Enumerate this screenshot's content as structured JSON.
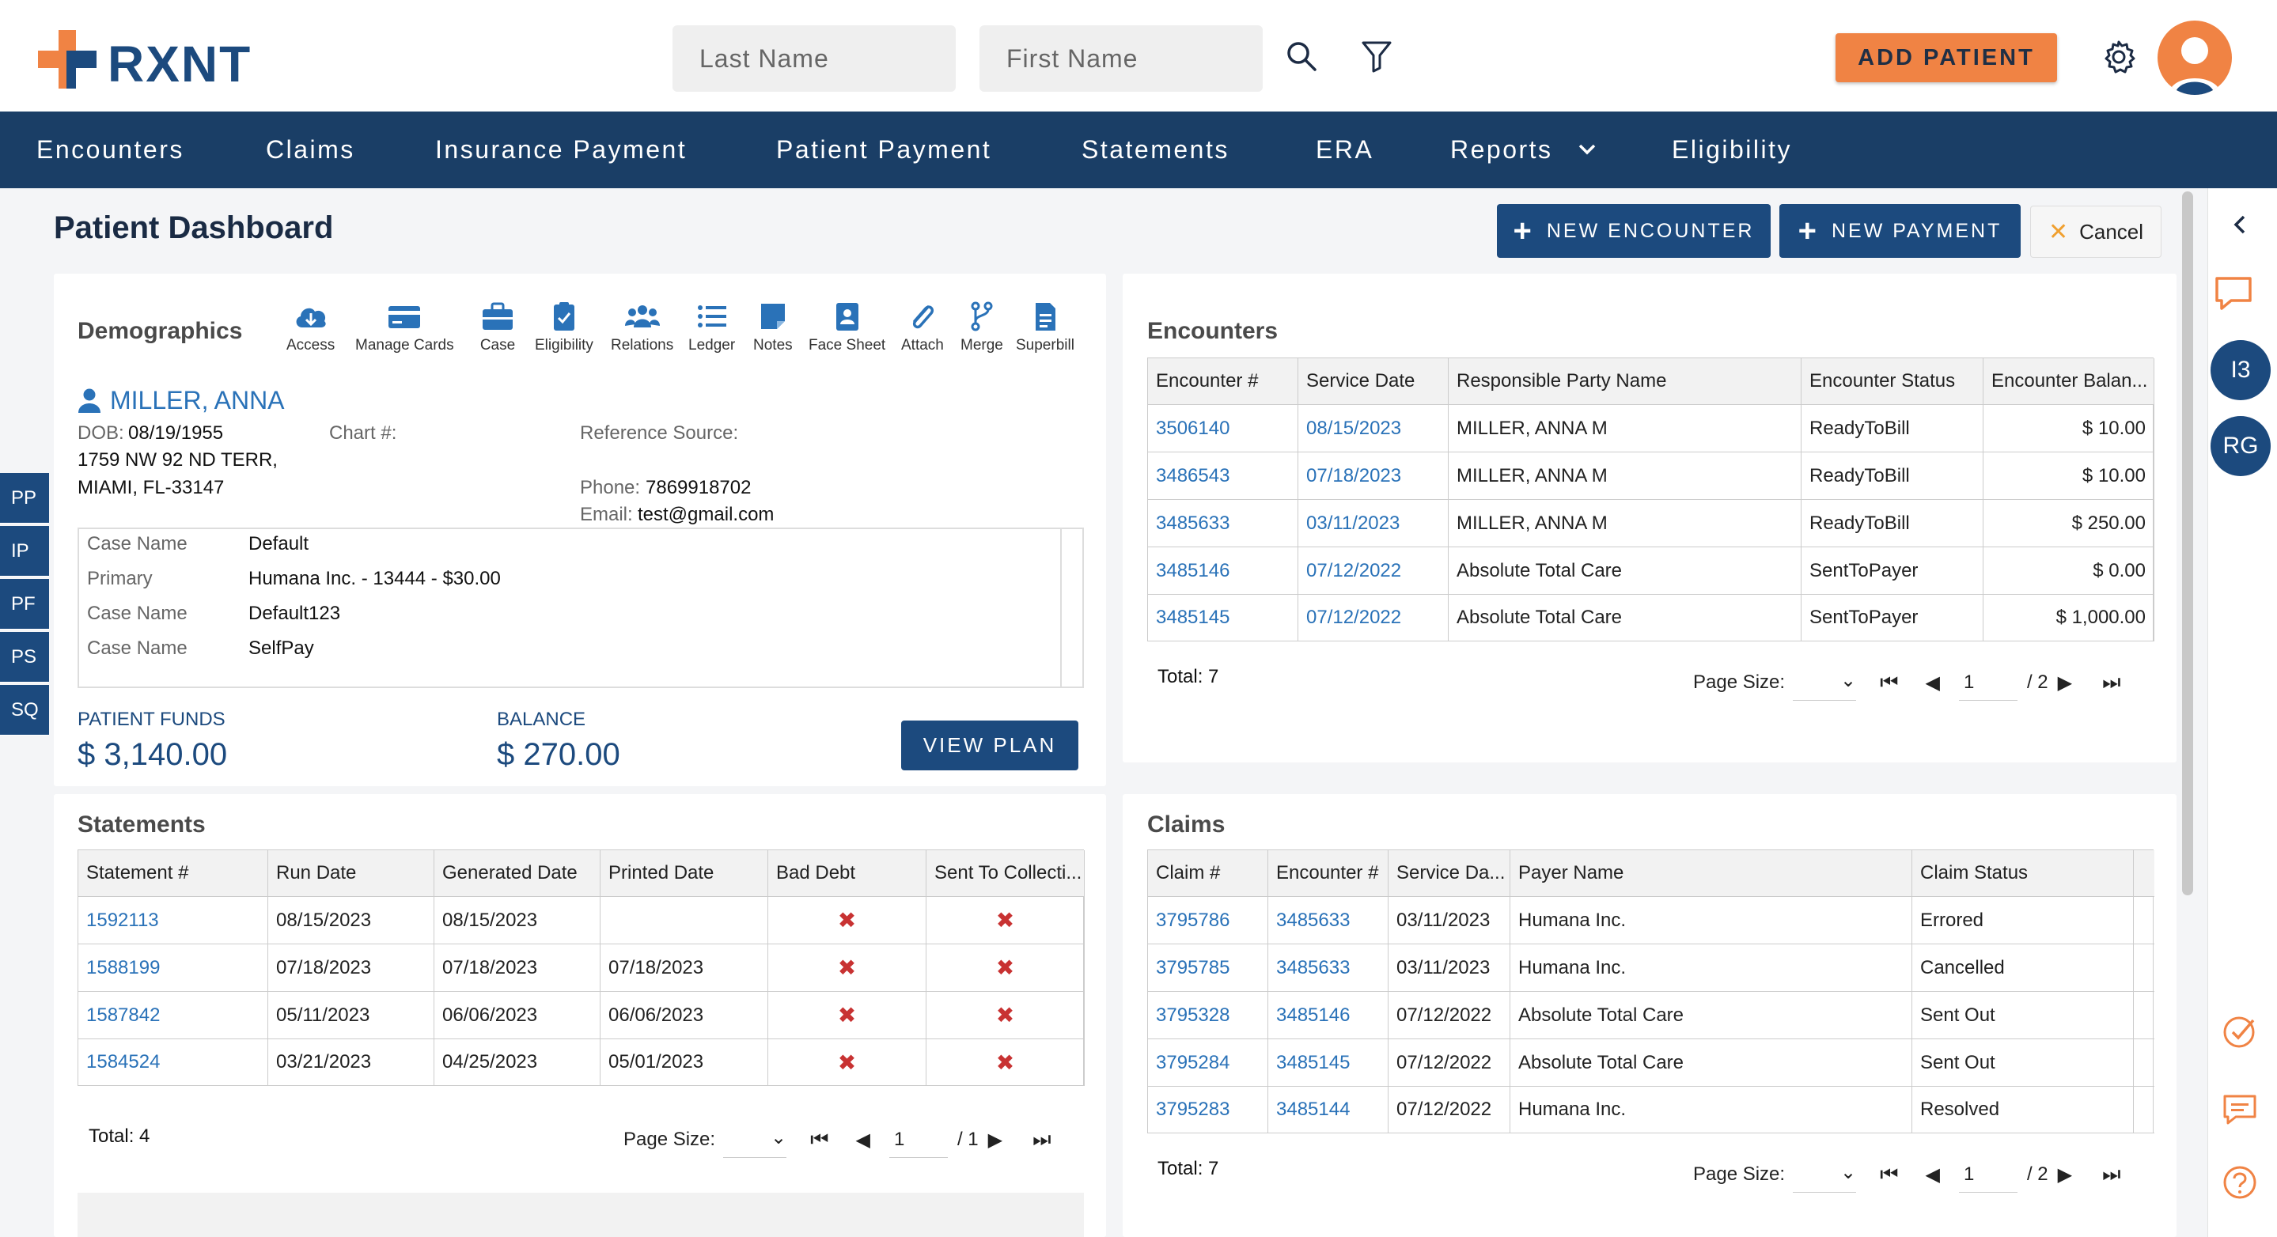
{
  "app": {
    "logo_text": "RXNT"
  },
  "search": {
    "last_name_placeholder": "Last Name",
    "first_name_placeholder": "First Name"
  },
  "header": {
    "add_patient_label": "ADD PATIENT"
  },
  "nav": {
    "items": [
      "Encounters",
      "Claims",
      "Insurance Payment",
      "Patient Payment",
      "Statements",
      "ERA",
      "Reports",
      "Eligibility"
    ]
  },
  "page": {
    "title": "Patient Dashboard"
  },
  "actions": {
    "new_encounter": "NEW ENCOUNTER",
    "new_payment": "NEW PAYMENT",
    "cancel": "Cancel"
  },
  "side_tabs": [
    "PP",
    "IP",
    "PF",
    "PS",
    "SQ"
  ],
  "right_rail": {
    "badges": [
      "I3",
      "RG"
    ]
  },
  "demographics": {
    "title": "Demographics",
    "tools": [
      "Access",
      "Manage Cards",
      "Case",
      "Eligibility",
      "Relations",
      "Ledger",
      "Notes",
      "Face Sheet",
      "Attach",
      "Merge",
      "Superbill"
    ],
    "patient_name": "MILLER, ANNA",
    "dob_label": "DOB:",
    "dob": "08/19/1955",
    "chart_label": "Chart #:",
    "ref_label": "Reference Source:",
    "address1": "1759 NW 92 ND TERR,",
    "address2": "MIAMI, FL-33147",
    "phone_label": "Phone:",
    "phone": "7869918702",
    "email_label": "Email:",
    "email": "test@gmail.com",
    "cases": [
      {
        "label": "Case Name",
        "value": "Default"
      },
      {
        "label": "Primary",
        "value": "Humana Inc. - 13444 - $30.00"
      },
      {
        "label": "Case Name",
        "value": "Default123"
      },
      {
        "label": "Case Name",
        "value": "SelfPay"
      }
    ],
    "patient_funds_label": "PATIENT FUNDS",
    "patient_funds": "$ 3,140.00",
    "balance_label": "BALANCE",
    "balance": "$ 270.00",
    "view_plan": "VIEW PLAN"
  },
  "encounters": {
    "title": "Encounters",
    "columns": [
      "Encounter #",
      "Service Date",
      "Responsible Party Name",
      "Encounter Status",
      "Encounter Balan..."
    ],
    "rows": [
      [
        "3506140",
        "08/15/2023",
        "MILLER, ANNA M",
        "ReadyToBill",
        "$ 10.00"
      ],
      [
        "3486543",
        "07/18/2023",
        "MILLER, ANNA M",
        "ReadyToBill",
        "$ 10.00"
      ],
      [
        "3485633",
        "03/11/2023",
        "MILLER, ANNA M",
        "ReadyToBill",
        "$ 250.00"
      ],
      [
        "3485146",
        "07/12/2022",
        "Absolute Total Care",
        "SentToPayer",
        "$ 0.00"
      ],
      [
        "3485145",
        "07/12/2022",
        "Absolute Total Care",
        "SentToPayer",
        "$ 1,000.00"
      ]
    ],
    "total": "Total: 7",
    "page_size_label": "Page Size:",
    "page": "1",
    "page_of": "/ 2"
  },
  "statements": {
    "title": "Statements",
    "columns": [
      "Statement #",
      "Run Date",
      "Generated Date",
      "Printed Date",
      "Bad Debt",
      "Sent To Collecti..."
    ],
    "rows": [
      [
        "1592113",
        "08/15/2023",
        "08/15/2023",
        "",
        "✖",
        "✖"
      ],
      [
        "1588199",
        "07/18/2023",
        "07/18/2023",
        "07/18/2023",
        "✖",
        "✖"
      ],
      [
        "1587842",
        "05/11/2023",
        "06/06/2023",
        "06/06/2023",
        "✖",
        "✖"
      ],
      [
        "1584524",
        "03/21/2023",
        "04/25/2023",
        "05/01/2023",
        "✖",
        "✖"
      ]
    ],
    "total": "Total: 4",
    "page_size_label": "Page Size:",
    "page": "1",
    "page_of": "/ 1"
  },
  "claims": {
    "title": "Claims",
    "columns": [
      "Claim #",
      "Encounter #",
      "Service Da...",
      "Payer Name",
      "Claim Status"
    ],
    "rows": [
      [
        "3795786",
        "3485633",
        "03/11/2023",
        "Humana Inc.",
        "Errored"
      ],
      [
        "3795785",
        "3485633",
        "03/11/2023",
        "Humana Inc.",
        "Cancelled"
      ],
      [
        "3795328",
        "3485146",
        "07/12/2022",
        "Absolute Total Care",
        "Sent Out"
      ],
      [
        "3795284",
        "3485145",
        "07/12/2022",
        "Absolute Total Care",
        "Sent Out"
      ],
      [
        "3795283",
        "3485144",
        "07/12/2022",
        "Humana Inc.",
        "Resolved"
      ]
    ],
    "total": "Total: 7",
    "page_size_label": "Page Size:",
    "page": "1",
    "page_of": "/ 2"
  },
  "colors": {
    "brand_navy": "#1a3e66",
    "accent_orange": "#f08344",
    "link_blue": "#2a72b8",
    "error_red": "#c83232"
  }
}
